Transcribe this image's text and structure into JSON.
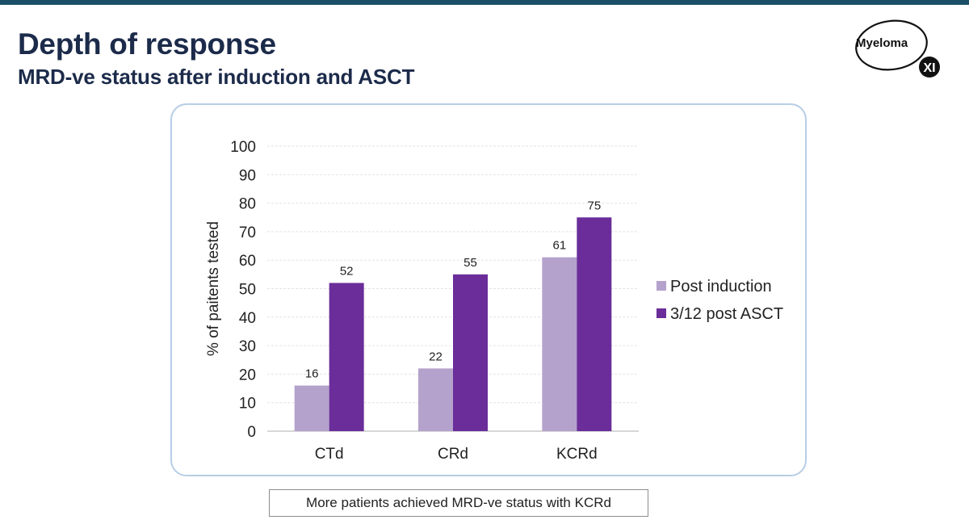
{
  "slide": {
    "title": "Depth of response",
    "subtitle": "MRD-ve status after induction and ASCT",
    "caption": "More patients achieved MRD-ve status with KCRd"
  },
  "logo": {
    "text": "Myeloma",
    "badge": "XI"
  },
  "colors": {
    "top_bar": "#1b4f68",
    "title": "#1c2b4a",
    "frame_border": "#b8cde6",
    "series_post_induction": "#b4a2cc",
    "series_post_asct": "#6a2d9a"
  },
  "chart_data": {
    "type": "bar",
    "title": "",
    "xlabel": "",
    "ylabel": "% of paitents tested",
    "ylim": [
      0,
      100
    ],
    "yticks": [
      0,
      10,
      20,
      30,
      40,
      50,
      60,
      70,
      80,
      90,
      100
    ],
    "grid": true,
    "legend_position": "right",
    "categories": [
      "CTd",
      "CRd",
      "KCRd"
    ],
    "series": [
      {
        "name": "Post induction",
        "values": [
          16,
          22,
          61
        ]
      },
      {
        "name": "3/12 post ASCT",
        "values": [
          52,
          55,
          75
        ]
      }
    ]
  }
}
